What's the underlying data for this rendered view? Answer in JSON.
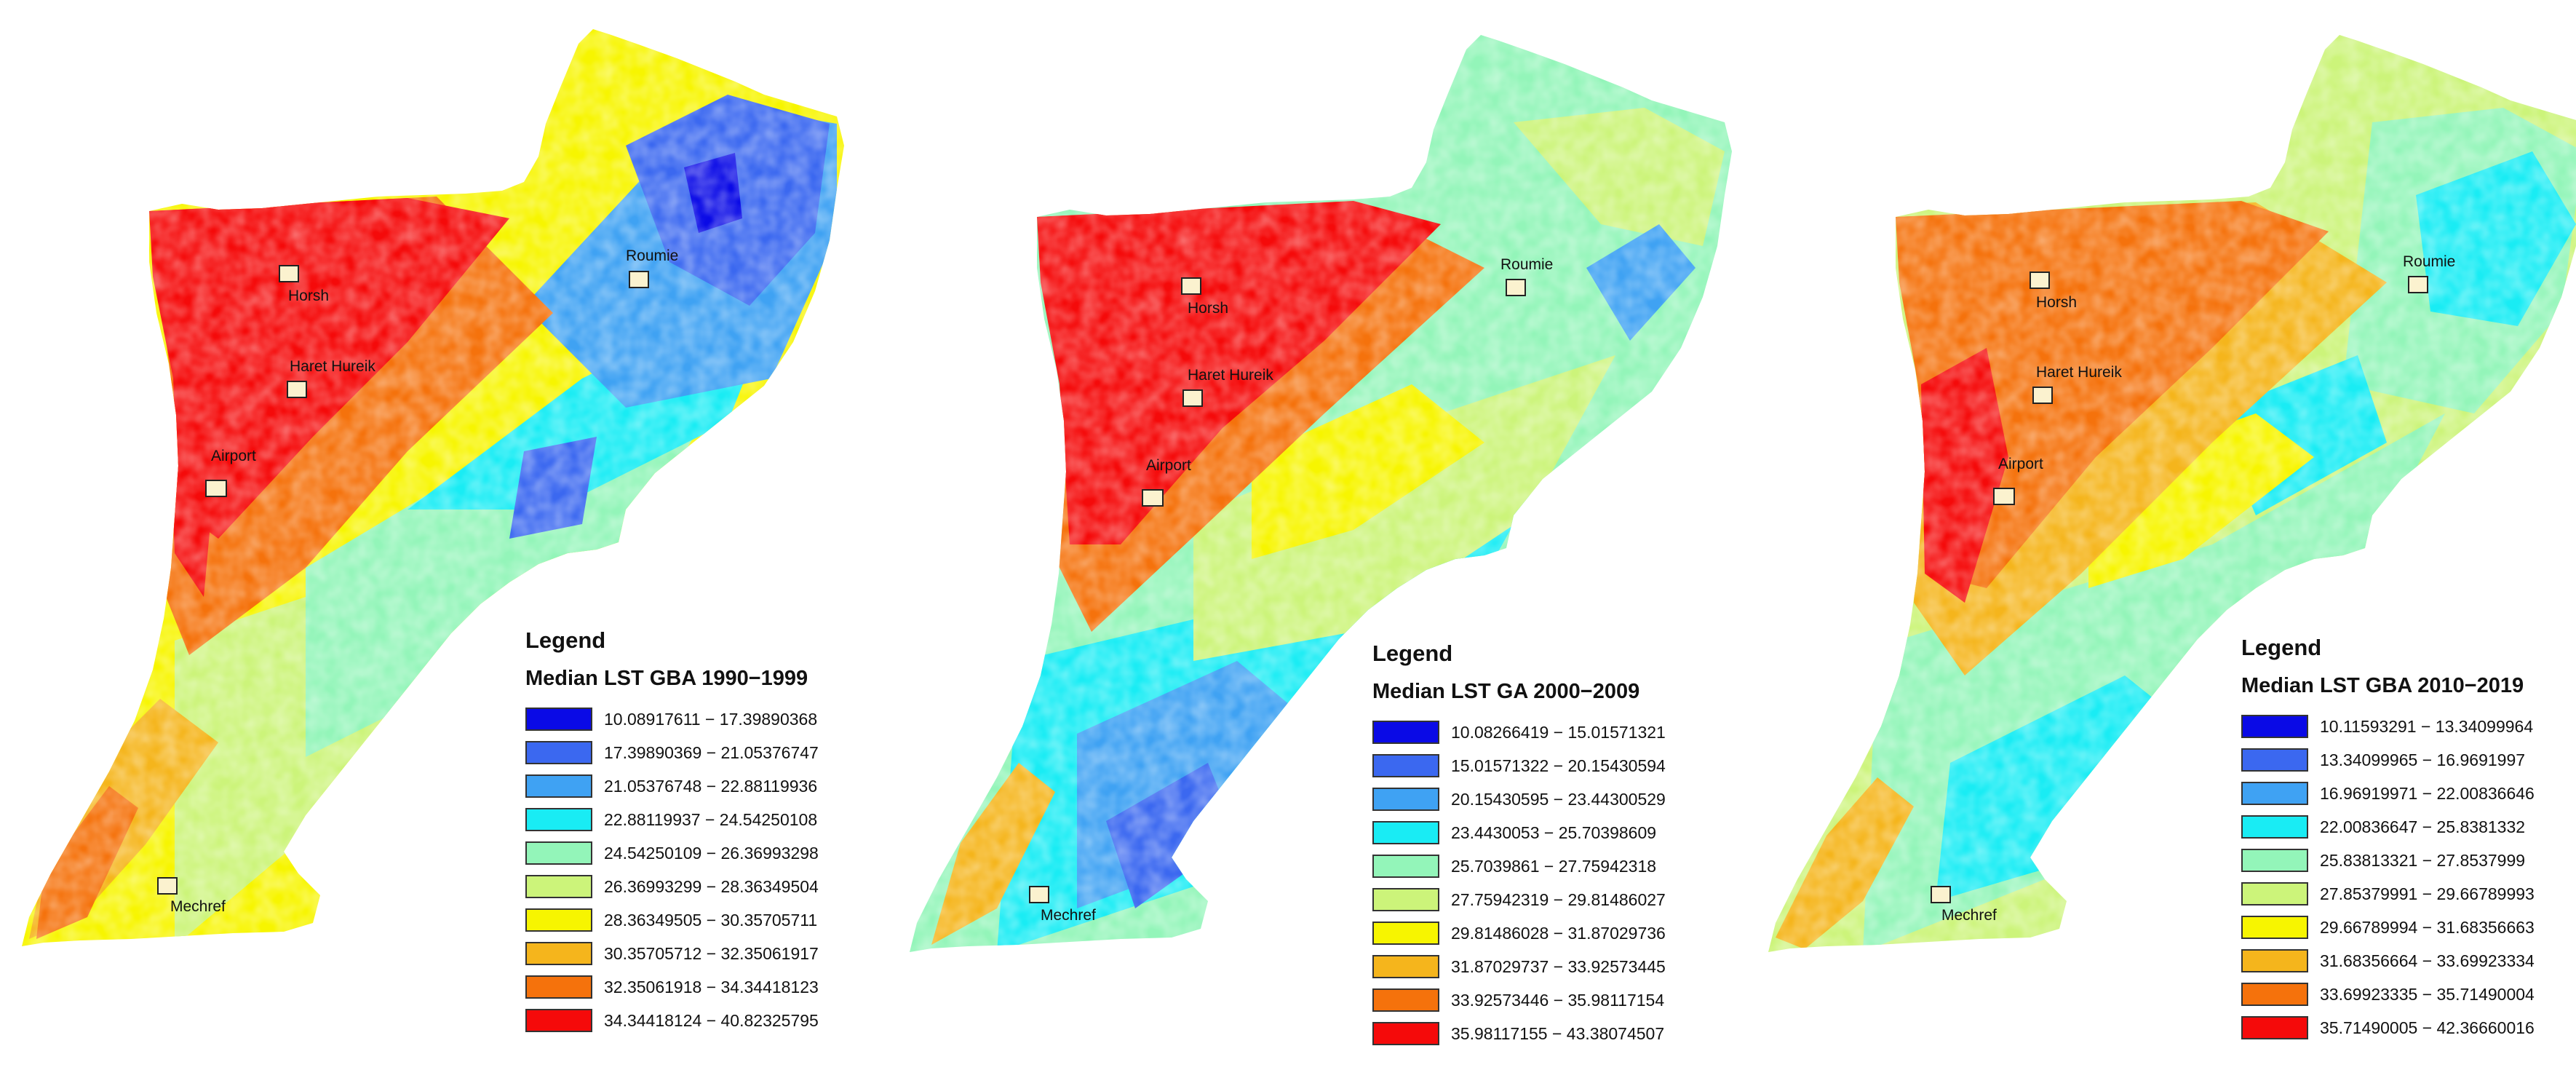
{
  "place_labels": {
    "horsh": "Horsh",
    "haret_hureik": "Haret Hureik",
    "airport": "Airport",
    "roumie": "Roumie",
    "mechref": "Mechref"
  },
  "colors": {
    "class_1": "#0a0ae6",
    "class_2": "#3b68f0",
    "class_3": "#3fa2f3",
    "class_4": "#19ecf4",
    "class_5": "#93f5b9",
    "class_6": "#ccf47a",
    "class_7": "#f7f500",
    "class_8": "#f5b51c",
    "class_9": "#f5720c",
    "class_10": "#f50a0a",
    "marker_fill": "#fbf2cf"
  },
  "maps": [
    {
      "legend_heading": "Legend",
      "legend_title": "Median LST GBA 1990−1999",
      "classes": [
        {
          "range": "10.08917611 − 17.39890368",
          "color": "#0a0ae6"
        },
        {
          "range": "17.39890369 − 21.05376747",
          "color": "#3b68f0"
        },
        {
          "range": "21.05376748 − 22.88119936",
          "color": "#3fa2f3"
        },
        {
          "range": "22.88119937 − 24.54250108",
          "color": "#19ecf4"
        },
        {
          "range": "24.54250109 − 26.36993298",
          "color": "#93f5b9"
        },
        {
          "range": "26.36993299 − 28.36349504",
          "color": "#ccf47a"
        },
        {
          "range": "28.36349505 − 30.35705711",
          "color": "#f7f500"
        },
        {
          "range": "30.35705712 − 32.35061917",
          "color": "#f5b51c"
        },
        {
          "range": "32.35061918 − 34.34418123",
          "color": "#f5720c"
        },
        {
          "range": "34.34418124 − 40.82325795",
          "color": "#f50a0a"
        }
      ]
    },
    {
      "legend_heading": "Legend",
      "legend_title": "Median LST GA 2000−2009",
      "classes": [
        {
          "range": "10.08266419 − 15.01571321",
          "color": "#0a0ae6"
        },
        {
          "range": "15.01571322 − 20.15430594",
          "color": "#3b68f0"
        },
        {
          "range": "20.15430595 − 23.44300529",
          "color": "#3fa2f3"
        },
        {
          "range": "23.4430053 − 25.70398609",
          "color": "#19ecf4"
        },
        {
          "range": "25.7039861 − 27.75942318",
          "color": "#93f5b9"
        },
        {
          "range": "27.75942319 − 29.81486027",
          "color": "#ccf47a"
        },
        {
          "range": "29.81486028 − 31.87029736",
          "color": "#f7f500"
        },
        {
          "range": "31.87029737 − 33.92573445",
          "color": "#f5b51c"
        },
        {
          "range": "33.92573446 − 35.98117154",
          "color": "#f5720c"
        },
        {
          "range": "35.98117155 − 43.38074507",
          "color": "#f50a0a"
        }
      ]
    },
    {
      "legend_heading": "Legend",
      "legend_title": "Median LST GBA 2010−2019",
      "classes": [
        {
          "range": "10.11593291 − 13.34099964",
          "color": "#0a0ae6"
        },
        {
          "range": "13.34099965 − 16.9691997",
          "color": "#3b68f0"
        },
        {
          "range": "16.96919971 − 22.00836646",
          "color": "#3fa2f3"
        },
        {
          "range": "22.00836647 − 25.8381332",
          "color": "#19ecf4"
        },
        {
          "range": "25.83813321 − 27.8537999",
          "color": "#93f5b9"
        },
        {
          "range": "27.85379991 − 29.66789993",
          "color": "#ccf47a"
        },
        {
          "range": "29.66789994 − 31.68356663",
          "color": "#f7f500"
        },
        {
          "range": "31.68356664 − 33.69923334",
          "color": "#f5b51c"
        },
        {
          "range": "33.69923335 − 35.71490004",
          "color": "#f5720c"
        },
        {
          "range": "35.71490005 − 42.36660016",
          "color": "#f50a0a"
        }
      ]
    }
  ]
}
